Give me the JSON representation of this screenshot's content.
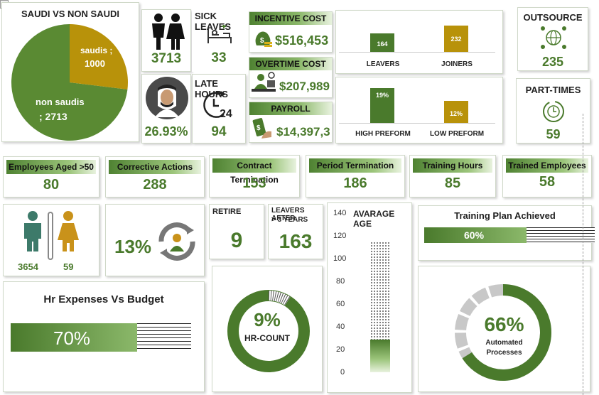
{
  "filter_icon": "dropdown-arrow-icon",
  "saudi_pie": {
    "title": "SAUDI VS NON SAUDI",
    "label_saudis": "saudis ;",
    "value_saudis": "1000",
    "label_non_saudis": "non saudis",
    "value_non_saudis": "; 2713",
    "colors": {
      "saudis": "#b8920a",
      "non_saudis": "#5a8a33"
    }
  },
  "chart_data": {
    "type": "pie",
    "title": "SAUDI VS NON SAUDI",
    "categories": [
      "saudis",
      "non saudis"
    ],
    "values": [
      1000,
      2713
    ]
  },
  "gender_top": {
    "value": "3713",
    "icon": "couple-icon"
  },
  "sick_leaves": {
    "label": "SICK LEAVES",
    "value": "33",
    "icon": "hospital-bed-icon"
  },
  "saudi_ratio": {
    "value": "26.93%",
    "icon": "saudi-man-avatar-icon"
  },
  "late_hours": {
    "label": "LATE HOURS",
    "value": "94",
    "icon": "clock-24-icon"
  },
  "incentive": {
    "label": "INCENTIVE COST",
    "value": "$516,453",
    "icon": "money-bag-icon"
  },
  "overtime": {
    "label": "OVERTIME COST",
    "value": "$207,989",
    "icon": "desk-worker-icon"
  },
  "payroll": {
    "label": "PAYROLL",
    "value": "$14,397,3",
    "icon": "cash-hand-icon"
  },
  "leavers_joiners": {
    "leavers_label": "LEAVERS",
    "leavers_value": "164",
    "joiners_label": "JOINERS",
    "joiners_value": "232",
    "leavers_num": 164,
    "joiners_num": 232
  },
  "performance": {
    "high_label": "HIGH PREFORM",
    "high_value": "19%",
    "low_label": "LOW PREFORM",
    "low_value": "12%",
    "high_num": 19,
    "low_num": 12
  },
  "outsource": {
    "label": "OUTSOURCE",
    "value": "235",
    "icon": "globe-network-icon"
  },
  "part_times": {
    "label": "PART-TIMES",
    "value": "59",
    "icon": "clock-arrows-icon"
  },
  "kpis": [
    {
      "label": "Employees Aged >50",
      "value": "80"
    },
    {
      "label": "Corrective Actions",
      "value": "288"
    },
    {
      "label": "Contract Termination",
      "value": "153"
    },
    {
      "label": "Period Termination",
      "value": "186"
    },
    {
      "label": "Training Hours",
      "value": "85"
    },
    {
      "label": "Trained Employees",
      "value": "58"
    }
  ],
  "gender": {
    "male_value": "3654",
    "female_value": "59",
    "male_icon": "male-icon",
    "female_icon": "female-icon"
  },
  "turnover": {
    "value": "13%",
    "icon": "recycle-person-icon"
  },
  "retire": {
    "label": "RETIRE",
    "value": "9"
  },
  "leavers_after": {
    "label_line1": "LEAVERS AFTER",
    "label_line2": "> 3 YEARS",
    "value": "163"
  },
  "avg_age": {
    "title": "AVARAGE AGE",
    "ticks": [
      "140",
      "120",
      "100",
      "80",
      "60",
      "40",
      "20",
      "0"
    ],
    "value": 35,
    "max": 140
  },
  "training_plan": {
    "title": "Training Plan Achieved",
    "value": "60%",
    "num": 60
  },
  "hr_expenses": {
    "title": "Hr Expenses Vs Budget",
    "value": "70%",
    "num": 70
  },
  "hr_count": {
    "value": "9%",
    "label": "HR-COUNT",
    "num": 9
  },
  "automated": {
    "value": "66%",
    "label_line1": "Automated",
    "label_line2": "Processes",
    "num": 66
  },
  "colors": {
    "accent": "#4a7a2c",
    "accent_light": "#8bb86a",
    "gold": "#b8920a"
  }
}
